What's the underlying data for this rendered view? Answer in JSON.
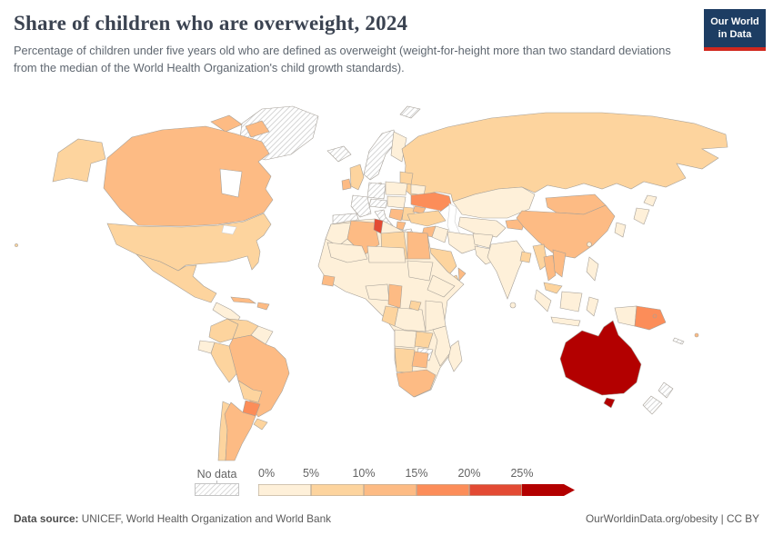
{
  "header": {
    "title": "Share of children who are overweight, 2024",
    "subtitle": "Percentage of children under five years old who are defined as overweight (weight-for-height more than two standard deviations from the median of the World Health Organization's child growth standards).",
    "logo": {
      "line1": "Our World",
      "line2": "in Data",
      "bg_color": "#1d3d63",
      "accent_color": "#d1281e"
    }
  },
  "legend": {
    "no_data_label": "No data",
    "ticks": [
      "0%",
      "5%",
      "10%",
      "15%",
      "20%",
      "25%"
    ]
  },
  "footer": {
    "source_label": "Data source:",
    "source_text": " UNICEF, World Health Organization and World Bank",
    "right_text": "OurWorldinData.org/obesity | CC BY"
  },
  "chart_data": {
    "type": "choropleth",
    "title": "Share of children who are overweight, 2024",
    "unit": "% of children under five defined as overweight",
    "legend_position": "bottom",
    "no_data": {
      "label": "No data",
      "style": "hatched"
    },
    "legend_bands": [
      {
        "range": "0-5%",
        "color": "#FEF0D9"
      },
      {
        "range": "5-10%",
        "color": "#FDD49E"
      },
      {
        "range": "10-15%",
        "color": "#FDBB84"
      },
      {
        "range": "15-20%",
        "color": "#FC8D59"
      },
      {
        "range": "20-25%",
        "color": "#E34A33"
      },
      {
        "range": "25%+",
        "color": "#B30000"
      }
    ],
    "regions": {
      "greenland": "no-data",
      "iceland": "no-data",
      "svalbard": "no-data",
      "norway-sweden": "no-data",
      "germany": "no-data",
      "france": "no-data",
      "iberia": "no-data",
      "alpine": "no-data",
      "italy": "no-data",
      "greece": "no-data",
      "zimbabwe": "no-data",
      "new-zealand": "no-data",
      "new-caledonia": "no-data",
      "central-america": "0-5%",
      "guyanas": "0-5%",
      "ecuador": "0-5%",
      "finland": "0-5%",
      "denmark": "0-5%",
      "poland": "0-5%",
      "czech-hungary": "0-5%",
      "belarus": "0-5%",
      "kazakhstan": "0-5%",
      "uzbekistan-turkmenistan": "0-5%",
      "iraq": "0-5%",
      "iran": "0-5%",
      "afghanistan": "0-5%",
      "pakistan": "0-5%",
      "india": "0-5%",
      "sri-lanka": "0-5%",
      "japan": "0-5%",
      "korea": "0-5%",
      "taiwan": "0-5%",
      "philippines": "0-5%",
      "indonesia": "0-5%",
      "morocco": "0-5%",
      "africa-other": "0-5%",
      "mauritania-mali": "0-5%",
      "niger-chad": "0-5%",
      "sudan": "0-5%",
      "nigeria": "0-5%",
      "ethiopia": "0-5%",
      "drc": "0-5%",
      "kenya-tanzania": "0-5%",
      "angola": "0-5%",
      "mozambique": "0-5%",
      "madagascar": "0-5%",
      "usa": "5-10%",
      "usa-alaska": "5-10%",
      "hawaii": "5-10%",
      "mexico": "5-10%",
      "colombia": "5-10%",
      "venezuela": "5-10%",
      "peru": "5-10%",
      "bolivia": "5-10%",
      "chile": "5-10%",
      "uruguay": "5-10%",
      "uk": "5-10%",
      "baltics": "5-10%",
      "romania-bulgaria": "5-10%",
      "turkey": "5-10%",
      "russia": "5-10%",
      "saudi-arabia": "5-10%",
      "yemen": "5-10%",
      "bangladesh": "5-10%",
      "myanmar": "5-10%",
      "malaysia": "5-10%",
      "libya": "5-10%",
      "gabon-congo": "5-10%",
      "uganda": "5-10%",
      "zambia": "5-10%",
      "namibia": "5-10%",
      "canada": "10-15%",
      "cuba": "10-15%",
      "hispaniola": "10-15%",
      "brazil": "10-15%",
      "argentina": "10-15%",
      "ireland": "10-15%",
      "balkans": "10-15%",
      "albania-macedonia": "10-15%",
      "syria": "10-15%",
      "georgia": "10-15%",
      "armenia-azerbaijan": "10-15%",
      "kyrgyzstan-tajikistan": "10-15%",
      "mongolia": "10-15%",
      "china": "10-15%",
      "oman": "10-15%",
      "thailand": "10-15%",
      "vietnam": "10-15%",
      "algeria": "10-15%",
      "egypt": "10-15%",
      "guinea": "10-15%",
      "cameroon": "10-15%",
      "botswana": "10-15%",
      "south-africa": "10-15%",
      "fiji": "10-15%",
      "ukraine": "15-20%",
      "paraguay": "15-20%",
      "papua-new-guinea": "15-20%",
      "solomon-islands": "15-20%",
      "tunisia": "20-25%",
      "australia": "25%+"
    }
  }
}
